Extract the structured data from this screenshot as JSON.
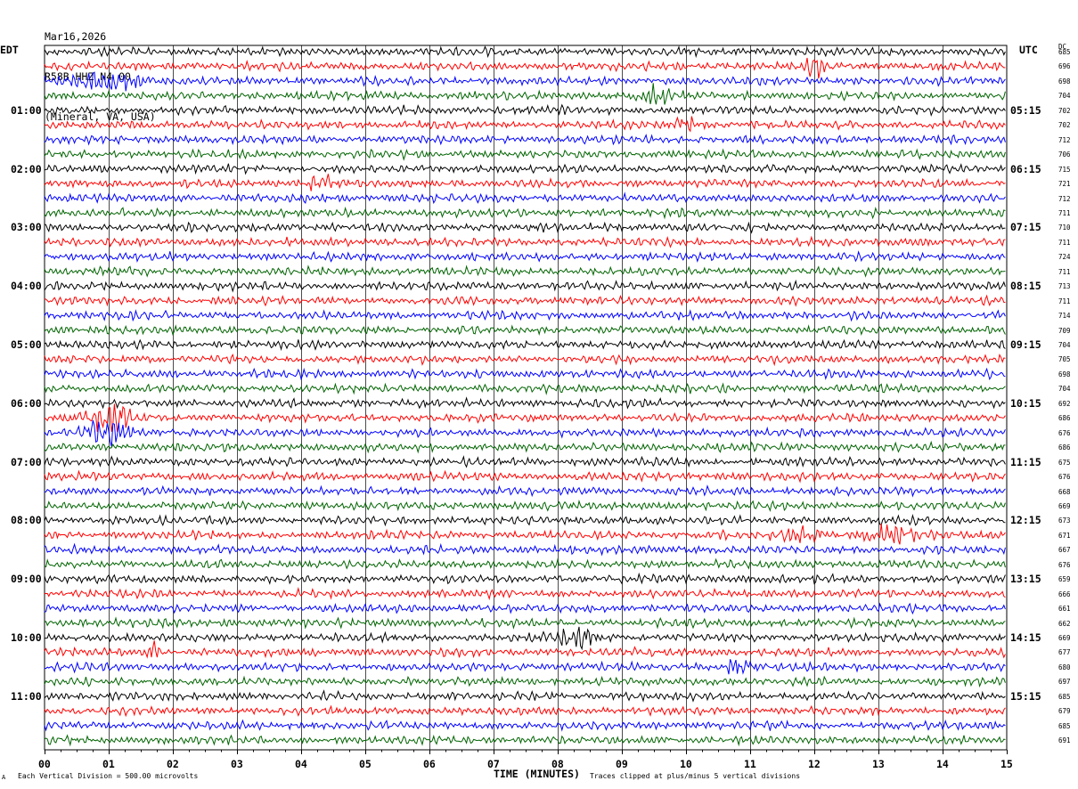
{
  "header": {
    "date": "Mar16,2026",
    "channel": "R58B HHZ N4 00",
    "location": "(Mineral, VA, USA)"
  },
  "left_tz": "EDT",
  "right_tz": "UTC",
  "dc_header": "DC",
  "footer": {
    "scale_note": "Each Vertical Division =  500.00 microvolts",
    "clip_note": "Traces clipped at plus/minus 5 vertical divisions",
    "mark": "A"
  },
  "colors": {
    "cycle": [
      "#000000",
      "#ff0000",
      "#0000ff",
      "#006400"
    ],
    "grid": "#000000"
  },
  "chart_data": {
    "type": "line",
    "title": "",
    "xlabel": "TIME (MINUTES)",
    "xlim": [
      0,
      15
    ],
    "x_ticks": [
      "00",
      "01",
      "02",
      "03",
      "04",
      "05",
      "06",
      "07",
      "08",
      "09",
      "10",
      "11",
      "12",
      "13",
      "14",
      "15"
    ],
    "rows_per_hour": 4,
    "row_count": 48,
    "left_hour_labels": [
      "01:00",
      "02:00",
      "03:00",
      "04:00",
      "05:00",
      "06:00",
      "07:00",
      "08:00",
      "09:00",
      "10:00",
      "11:00"
    ],
    "right_hour_labels": [
      "05:15",
      "06:15",
      "07:15",
      "08:15",
      "09:15",
      "10:15",
      "11:15",
      "12:15",
      "13:15",
      "14:15",
      "15:15"
    ],
    "dc_offsets": [
      685,
      696,
      698,
      704,
      702,
      702,
      712,
      706,
      715,
      721,
      712,
      711,
      710,
      711,
      724,
      711,
      713,
      711,
      714,
      709,
      704,
      705,
      698,
      704,
      692,
      686,
      676,
      686,
      675,
      676,
      668,
      669,
      673,
      671,
      667,
      676,
      659,
      666,
      661,
      662,
      669,
      677,
      680,
      697,
      685,
      679,
      685,
      691
    ],
    "events": [
      {
        "row": 2,
        "minute": 1.0,
        "amplitude": 2.2,
        "width_min": 0.7
      },
      {
        "row": 1,
        "minute": 12.0,
        "amplitude": 2.6,
        "width_min": 0.15
      },
      {
        "row": 3,
        "minute": 9.5,
        "amplitude": 1.6,
        "width_min": 0.4
      },
      {
        "row": 5,
        "minute": 10.0,
        "amplitude": 1.5,
        "width_min": 0.25
      },
      {
        "row": 9,
        "minute": 4.3,
        "amplitude": 1.4,
        "width_min": 0.3
      },
      {
        "row": 25,
        "minute": 1.0,
        "amplitude": 3.2,
        "width_min": 0.5
      },
      {
        "row": 26,
        "minute": 1.0,
        "amplitude": 2.6,
        "width_min": 0.5
      },
      {
        "row": 33,
        "minute": 11.8,
        "amplitude": 1.8,
        "width_min": 0.5
      },
      {
        "row": 33,
        "minute": 13.2,
        "amplitude": 2.0,
        "width_min": 0.5
      },
      {
        "row": 40,
        "minute": 8.3,
        "amplitude": 1.9,
        "width_min": 0.5
      },
      {
        "row": 41,
        "minute": 1.7,
        "amplitude": 1.8,
        "width_min": 0.15
      },
      {
        "row": 42,
        "minute": 10.8,
        "amplitude": 1.5,
        "width_min": 0.4
      }
    ]
  }
}
